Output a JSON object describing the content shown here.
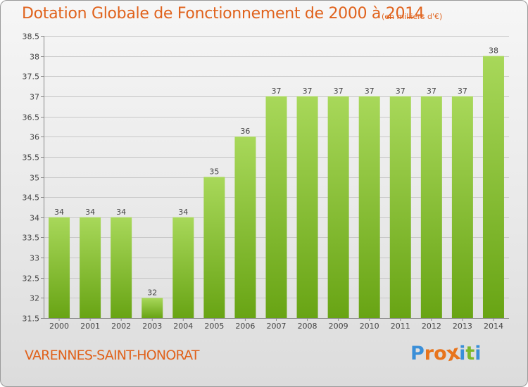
{
  "header": {
    "title": "Dotation Globale de Fonctionnement de 2000 à 2014",
    "unit": "(en milliers d'€)"
  },
  "footer": {
    "city": "VARENNES-SAINT-HONORAT",
    "logo_text": "Proxiti"
  },
  "colors": {
    "title": "#e0621c",
    "bar_top": "#a8d85a",
    "bar_bottom": "#68a414",
    "grid": "#c8c8c8",
    "logo": [
      "#3a8fd8",
      "#e8741c",
      "#e8741c",
      "#e8741c",
      "#3a8fd8",
      "#7cb82a",
      "#3a8fd8"
    ]
  },
  "chart_data": {
    "type": "bar",
    "title": "Dotation Globale de Fonctionnement de 2000 à 2014",
    "subtitle": "(en milliers d'€)",
    "xlabel": "",
    "ylabel": "",
    "categories": [
      "2000",
      "2001",
      "2002",
      "2003",
      "2004",
      "2005",
      "2006",
      "2007",
      "2008",
      "2009",
      "2010",
      "2011",
      "2012",
      "2013",
      "2014"
    ],
    "values": [
      34,
      34,
      34,
      32,
      34,
      35,
      36,
      37,
      37,
      37,
      37,
      37,
      37,
      37,
      38
    ],
    "ylim": [
      31.5,
      38.5
    ],
    "yticks": [
      31.5,
      32,
      32.5,
      33,
      33.5,
      34,
      34.5,
      35,
      35.5,
      36,
      36.5,
      37,
      37.5,
      38,
      38.5
    ],
    "ytick_labels": [
      "31.5",
      "32",
      "32.5",
      "33",
      "33.5",
      "34",
      "34.5",
      "35",
      "35.5",
      "36",
      "36.5",
      "37",
      "37.5",
      "38",
      "38.5"
    ],
    "data_labels": [
      "34",
      "34",
      "34",
      "32",
      "34",
      "35",
      "36",
      "37",
      "37",
      "37",
      "37",
      "37",
      "37",
      "37",
      "38"
    ],
    "grid": true,
    "legend": "none"
  }
}
